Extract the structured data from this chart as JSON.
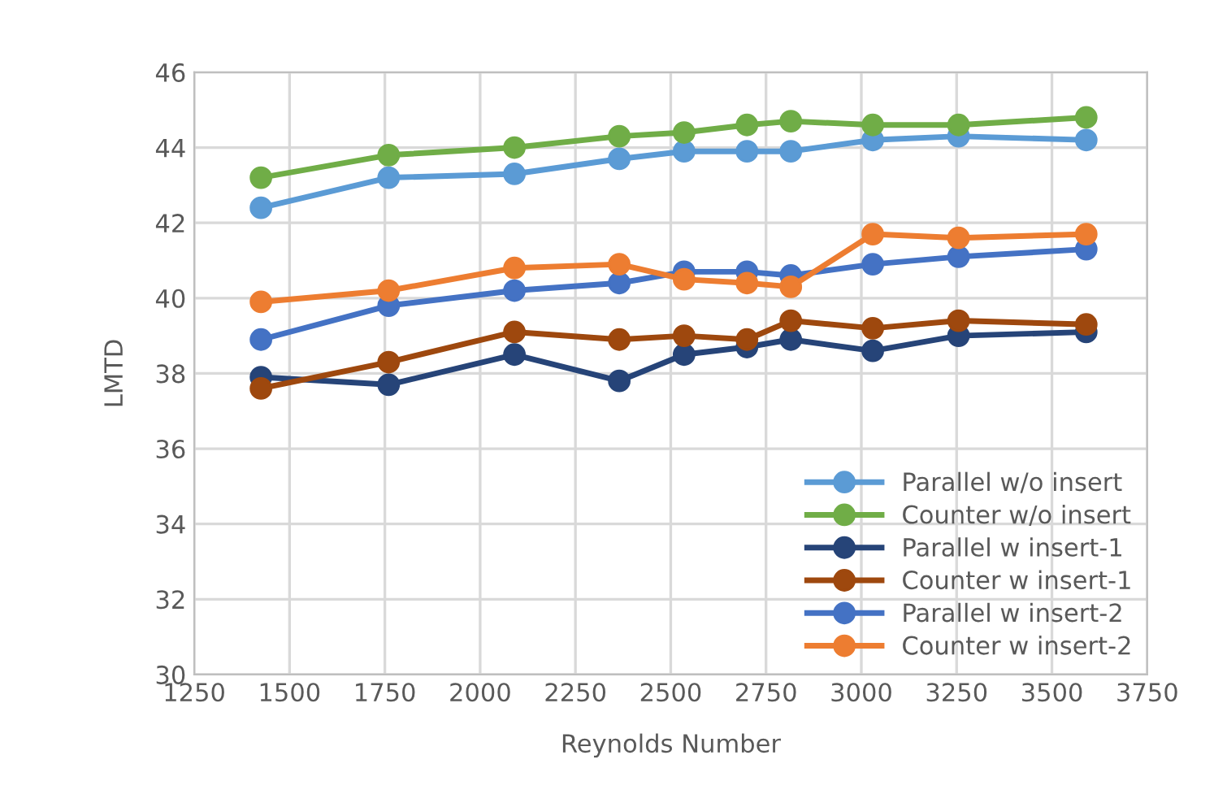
{
  "chart_data": {
    "type": "line",
    "xlabel": "Reynolds Number",
    "ylabel": "LMTD",
    "x": [
      1425,
      1760,
      2090,
      2365,
      2535,
      2700,
      2815,
      3030,
      3255,
      3590
    ],
    "series": [
      {
        "name": "Parallel w/o insert",
        "color": "#5b9bd5",
        "values": [
          42.4,
          43.2,
          43.3,
          43.7,
          43.9,
          43.9,
          43.9,
          44.2,
          44.3,
          44.2
        ]
      },
      {
        "name": "Counter w/o insert",
        "color": "#70ad47",
        "values": [
          43.2,
          43.8,
          44.0,
          44.3,
          44.4,
          44.6,
          44.7,
          44.6,
          44.6,
          44.8
        ]
      },
      {
        "name": "Parallel w insert-1",
        "color": "#264478",
        "values": [
          37.9,
          37.7,
          38.5,
          37.8,
          38.5,
          38.7,
          38.9,
          38.6,
          39.0,
          39.1
        ]
      },
      {
        "name": "Counter w insert-1",
        "color": "#9e480e",
        "values": [
          37.6,
          38.3,
          39.1,
          38.9,
          39.0,
          38.9,
          39.4,
          39.2,
          39.4,
          39.3
        ]
      },
      {
        "name": "Parallel w insert-2",
        "color": "#4472c4",
        "values": [
          38.9,
          39.8,
          40.2,
          40.4,
          40.7,
          40.7,
          40.6,
          40.9,
          41.1,
          41.3
        ]
      },
      {
        "name": "Counter w insert-2",
        "color": "#ed7d31",
        "values": [
          39.9,
          40.2,
          40.8,
          40.9,
          40.5,
          40.4,
          40.3,
          41.7,
          41.6,
          41.7
        ]
      }
    ],
    "xlim": [
      1250,
      3750
    ],
    "xticks": [
      1250,
      1500,
      1750,
      2000,
      2250,
      2500,
      2750,
      3000,
      3250,
      3500,
      3750
    ],
    "ylim": [
      30,
      46
    ],
    "yticks": [
      30,
      32,
      34,
      36,
      38,
      40,
      42,
      44,
      46
    ],
    "grid": true,
    "legend": "bottom right",
    "marker": "circle",
    "line_style": "solid"
  }
}
